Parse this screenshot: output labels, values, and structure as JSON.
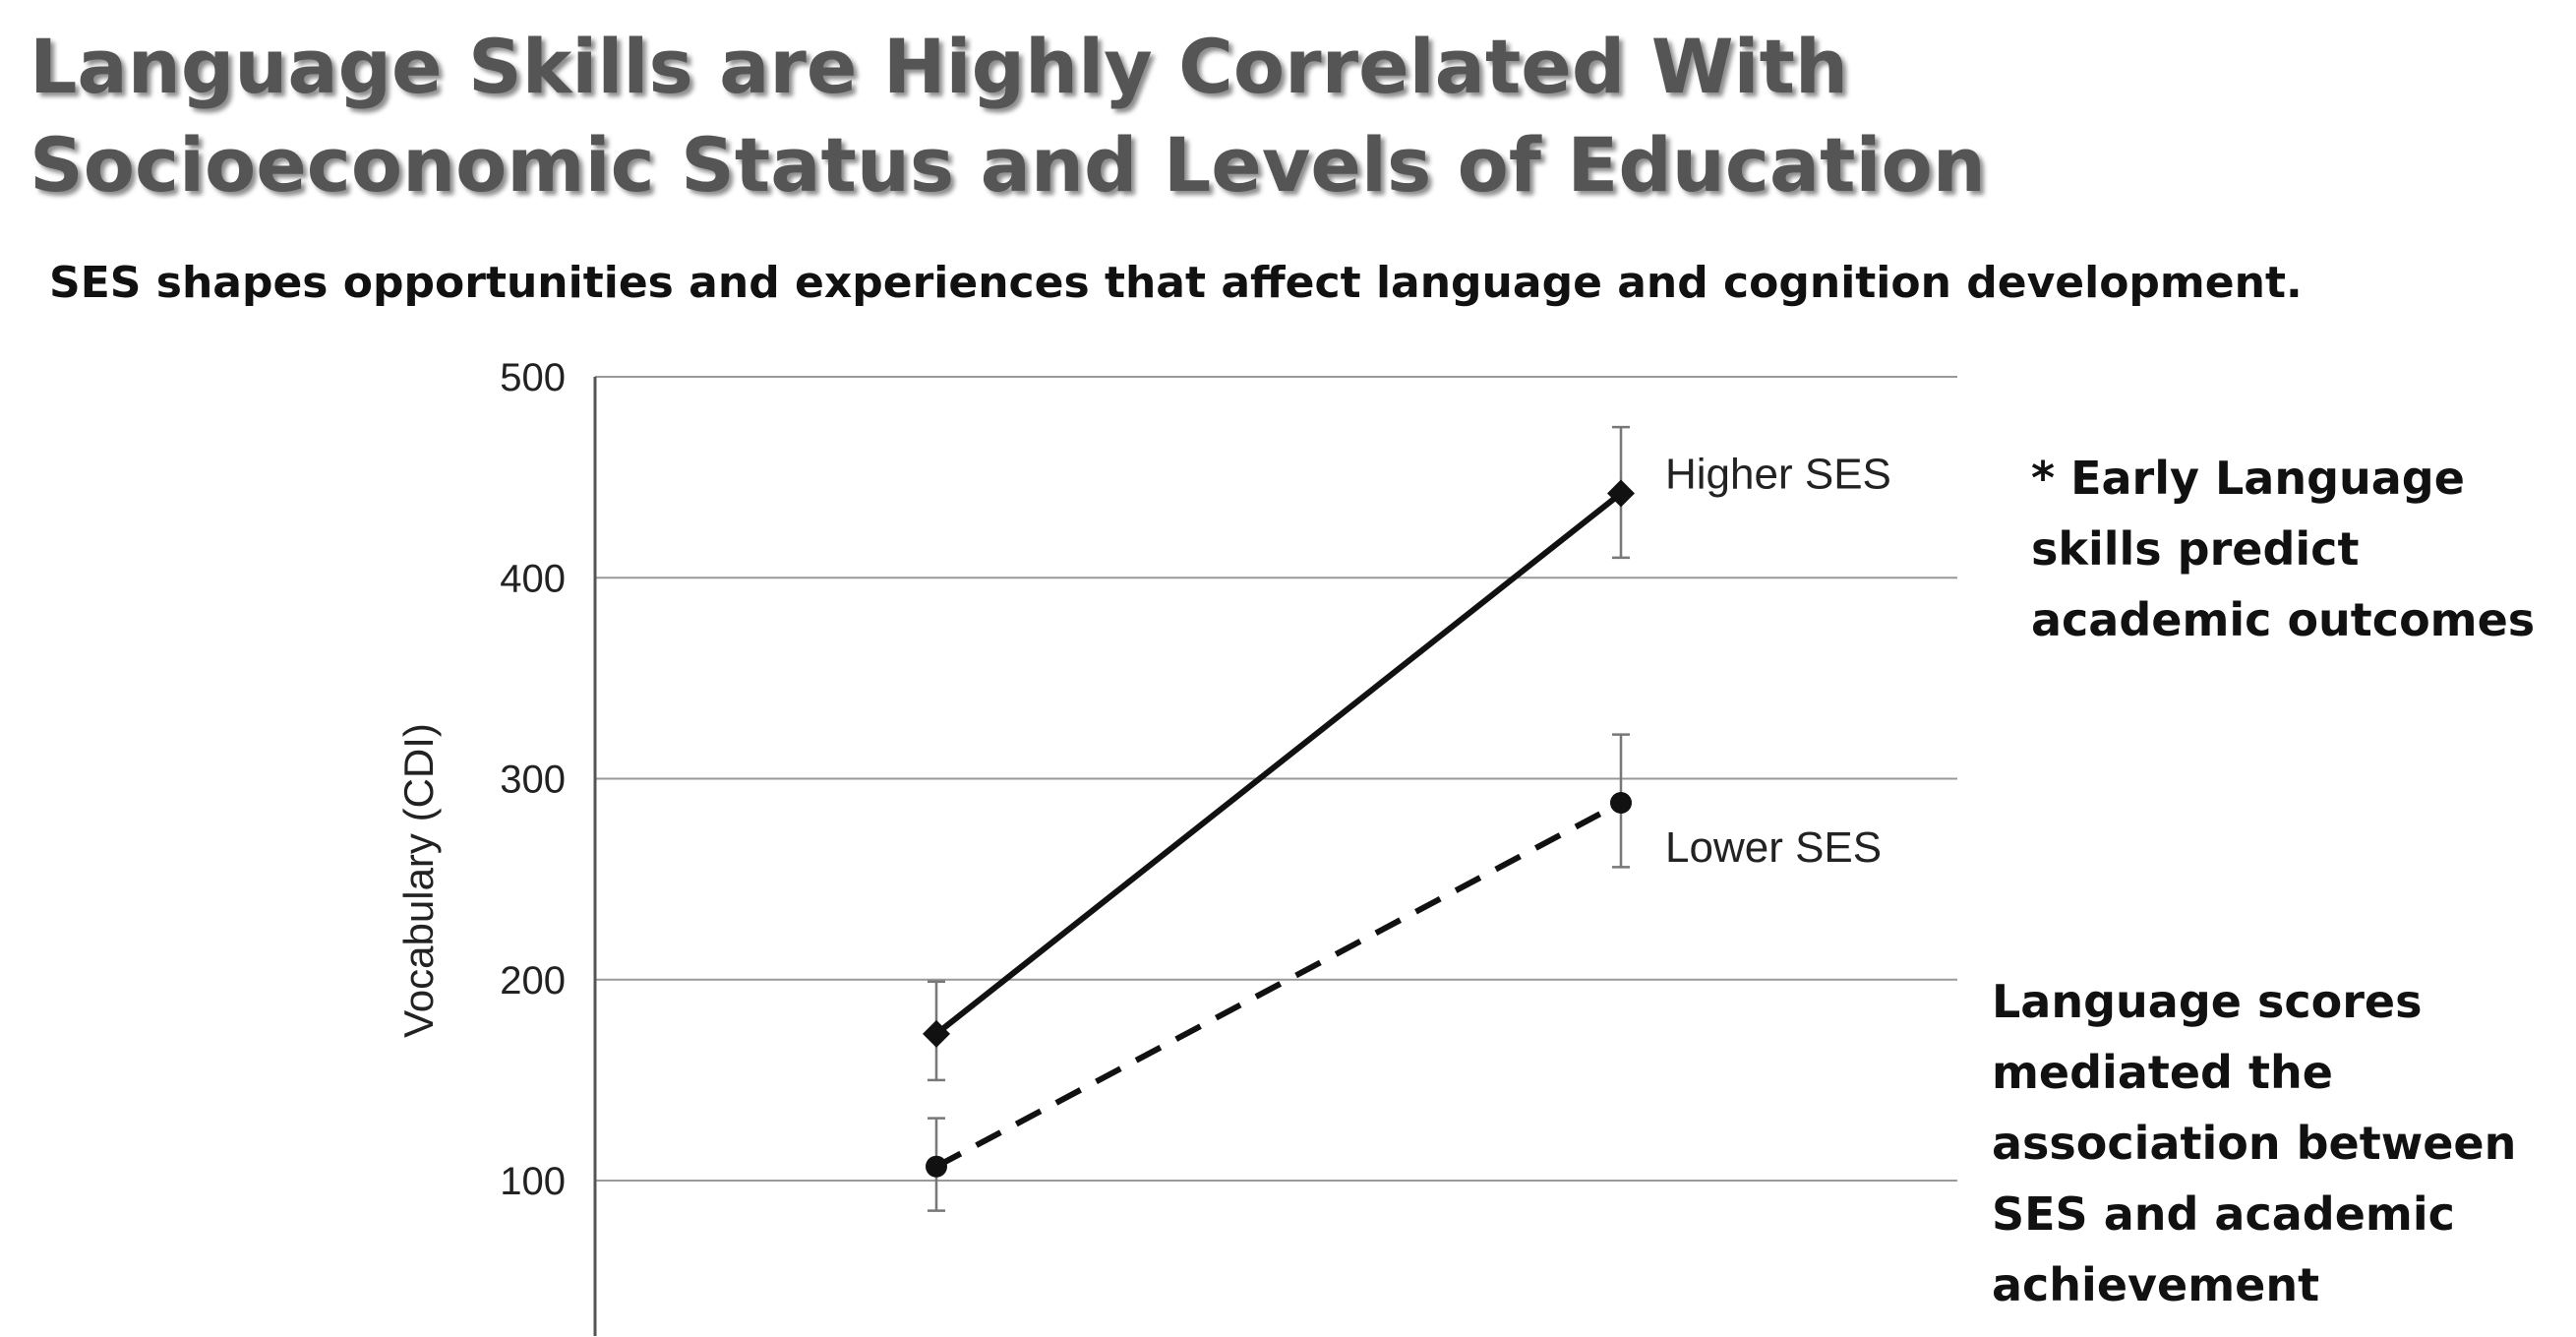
{
  "slide": {
    "title": "Language Skills are Highly Correlated With Socioeconomic Status and Levels of Education",
    "subtitle": "SES shapes opportunities and experiences that affect language and cognition development.",
    "note_1": "* Early Language skills predict academic outcomes",
    "note_2": "Language scores mediated the association between SES and academic achievement"
  },
  "chart_data": {
    "type": "line",
    "title": "",
    "xlabel": "",
    "ylabel": "Vocabulary (CDI)",
    "ylim": [
      50,
      500
    ],
    "yticks": [
      100,
      200,
      300,
      400,
      500
    ],
    "grid": true,
    "x_positions": 2,
    "series": [
      {
        "name": "Higher SES",
        "values": [
          173,
          442
        ],
        "error_low": [
          150,
          410
        ],
        "error_high": [
          199,
          475
        ],
        "marker": "diamond",
        "line_style": "solid",
        "color": "#111111"
      },
      {
        "name": "Lower SES",
        "values": [
          107,
          288
        ],
        "error_low": [
          85,
          256
        ],
        "error_high": [
          131,
          322
        ],
        "marker": "circle",
        "line_style": "dashed",
        "color": "#111111"
      }
    ]
  },
  "colors": {
    "gridline": "#999999",
    "axis": "#555555",
    "errorbar": "#777777",
    "title": "#555555"
  }
}
